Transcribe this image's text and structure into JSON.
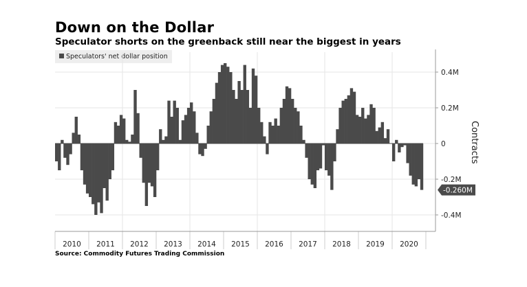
{
  "chart_data": {
    "type": "bar",
    "title": "Down on the Dollar",
    "subtitle": "Speculator shorts on the greenback still near the biggest in years",
    "legend": [
      {
        "label": "Speculators' net dollar position",
        "color": "#4a4a4a"
      }
    ],
    "legend_placement": "top-left",
    "ylabel": "Contracts",
    "units": "thousands of contracts",
    "ylim": [
      -490,
      530
    ],
    "yticks": [
      {
        "value": 400,
        "label": "0.4M"
      },
      {
        "value": 200,
        "label": "0.2M"
      },
      {
        "value": 0,
        "label": "0"
      },
      {
        "value": -200,
        "label": "-0.2M"
      },
      {
        "value": -400,
        "label": "-0.4M"
      }
    ],
    "xticks": [
      "2010",
      "2011",
      "2012",
      "2013",
      "2014",
      "2015",
      "2016",
      "2017",
      "2018",
      "2019",
      "2020"
    ],
    "x_start": "2010-01",
    "x_frequency": "monthly",
    "grid": true,
    "last_value_label": "-0.260M",
    "last_value": -260,
    "values": [
      -100,
      -150,
      20,
      -80,
      -120,
      -60,
      60,
      150,
      50,
      -150,
      -230,
      -280,
      -300,
      -340,
      -400,
      -330,
      -390,
      -250,
      -320,
      -200,
      -150,
      120,
      100,
      160,
      140,
      20,
      10,
      50,
      300,
      170,
      -80,
      -220,
      -350,
      -220,
      -240,
      -300,
      -150,
      80,
      20,
      40,
      240,
      150,
      240,
      200,
      20,
      130,
      160,
      200,
      230,
      180,
      60,
      -60,
      -70,
      -30,
      100,
      180,
      250,
      340,
      400,
      440,
      450,
      430,
      400,
      300,
      250,
      350,
      300,
      440,
      300,
      200,
      420,
      380,
      200,
      120,
      40,
      -60,
      120,
      100,
      140,
      100,
      200,
      250,
      320,
      310,
      250,
      200,
      180,
      100,
      20,
      -80,
      -200,
      -230,
      -250,
      -150,
      -140,
      -10,
      -150,
      -180,
      -260,
      -100,
      80,
      200,
      240,
      250,
      270,
      310,
      290,
      160,
      150,
      200,
      140,
      160,
      220,
      200,
      70,
      90,
      120,
      30,
      80,
      0,
      -100,
      20,
      -50,
      -20,
      -10,
      -110,
      -180,
      -230,
      -240,
      -200,
      -260
    ],
    "source": "Source: Commodity Futures Trading Commission"
  },
  "colors": {
    "bar": "#4a4a4a",
    "grid": "#e6e6e6",
    "axis": "#999999",
    "callout": "#4a4a4a"
  }
}
